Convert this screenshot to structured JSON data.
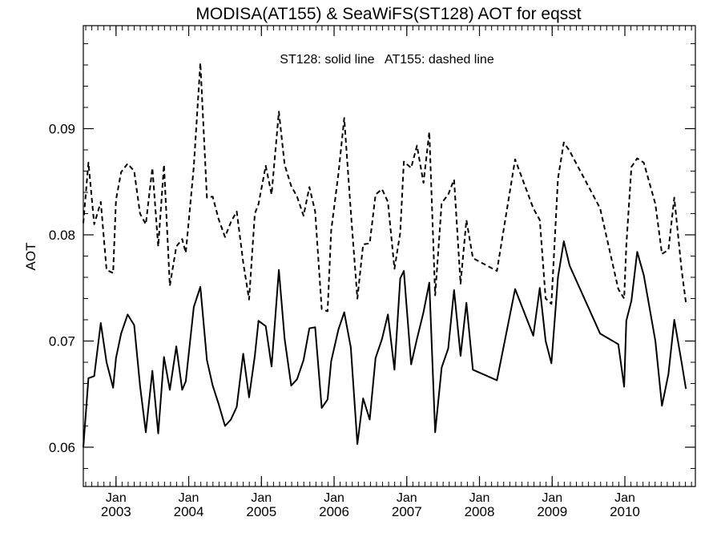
{
  "chart_data": {
    "type": "line",
    "title": "MODISA(AT155) & SeaWiFS(ST128)  AOT for eqsst",
    "annotation": "ST128: solid line   AT155: dashed line",
    "ylabel": "AOT",
    "xlabel": "",
    "x_unit": "year",
    "xlim": [
      2002.55,
      2010.97
    ],
    "ylim": [
      0.0563,
      0.0997
    ],
    "y_ticks": [
      0.06,
      0.07,
      0.08,
      0.09
    ],
    "y_tick_labels": [
      "0.06",
      "0.07",
      "0.08",
      "0.09"
    ],
    "x_ticks": [
      {
        "x": 2003.0,
        "month": "Jan",
        "year": "2003"
      },
      {
        "x": 2004.0,
        "month": "Jan",
        "year": "2004"
      },
      {
        "x": 2005.0,
        "month": "Jan",
        "year": "2005"
      },
      {
        "x": 2006.0,
        "month": "Jan",
        "year": "2006"
      },
      {
        "x": 2007.0,
        "month": "Jan",
        "year": "2007"
      },
      {
        "x": 2008.0,
        "month": "Jan",
        "year": "2008"
      },
      {
        "x": 2009.0,
        "month": "Jan",
        "year": "2009"
      },
      {
        "x": 2010.0,
        "month": "Jan",
        "year": "2010"
      }
    ],
    "series": [
      {
        "name": "ST128",
        "style": "solid",
        "color": "#000000",
        "points": [
          [
            2002.55,
            0.06
          ],
          [
            2002.62,
            0.0665
          ],
          [
            2002.7,
            0.0667
          ],
          [
            2002.79,
            0.0717
          ],
          [
            2002.87,
            0.068
          ],
          [
            2002.96,
            0.0656
          ],
          [
            2003.0,
            0.0684
          ],
          [
            2003.07,
            0.0707
          ],
          [
            2003.16,
            0.0725
          ],
          [
            2003.25,
            0.0715
          ],
          [
            2003.33,
            0.0658
          ],
          [
            2003.41,
            0.0614
          ],
          [
            2003.5,
            0.0672
          ],
          [
            2003.58,
            0.0613
          ],
          [
            2003.66,
            0.0685
          ],
          [
            2003.74,
            0.0654
          ],
          [
            2003.83,
            0.0695
          ],
          [
            2003.91,
            0.0654
          ],
          [
            2003.96,
            0.0662
          ],
          [
            2004.07,
            0.0732
          ],
          [
            2004.16,
            0.0751
          ],
          [
            2004.25,
            0.0682
          ],
          [
            2004.33,
            0.0658
          ],
          [
            2004.41,
            0.0641
          ],
          [
            2004.5,
            0.062
          ],
          [
            2004.58,
            0.0626
          ],
          [
            2004.66,
            0.0638
          ],
          [
            2004.75,
            0.0688
          ],
          [
            2004.83,
            0.0647
          ],
          [
            2004.91,
            0.0686
          ],
          [
            2004.96,
            0.0719
          ],
          [
            2005.06,
            0.0714
          ],
          [
            2005.14,
            0.0676
          ],
          [
            2005.24,
            0.0767
          ],
          [
            2005.32,
            0.0702
          ],
          [
            2005.41,
            0.0658
          ],
          [
            2005.49,
            0.0664
          ],
          [
            2005.58,
            0.0682
          ],
          [
            2005.66,
            0.0712
          ],
          [
            2005.74,
            0.0713
          ],
          [
            2005.83,
            0.0637
          ],
          [
            2005.91,
            0.0645
          ],
          [
            2005.96,
            0.0681
          ],
          [
            2006.06,
            0.0711
          ],
          [
            2006.14,
            0.0727
          ],
          [
            2006.23,
            0.0694
          ],
          [
            2006.32,
            0.0603
          ],
          [
            2006.4,
            0.0646
          ],
          [
            2006.49,
            0.0626
          ],
          [
            2006.57,
            0.0684
          ],
          [
            2006.66,
            0.0702
          ],
          [
            2006.74,
            0.0725
          ],
          [
            2006.83,
            0.0673
          ],
          [
            2006.91,
            0.0759
          ],
          [
            2006.96,
            0.0766
          ],
          [
            2007.06,
            0.0678
          ],
          [
            2007.14,
            0.0702
          ],
          [
            2007.23,
            0.0727
          ],
          [
            2007.31,
            0.0755
          ],
          [
            2007.39,
            0.0614
          ],
          [
            2007.48,
            0.0675
          ],
          [
            2007.57,
            0.0693
          ],
          [
            2007.65,
            0.0748
          ],
          [
            2007.74,
            0.0686
          ],
          [
            2007.82,
            0.0736
          ],
          [
            2007.91,
            0.0673
          ],
          [
            2008.24,
            0.0663
          ],
          [
            2008.49,
            0.0749
          ],
          [
            2008.74,
            0.0705
          ],
          [
            2008.83,
            0.075
          ],
          [
            2008.91,
            0.07
          ],
          [
            2008.99,
            0.0679
          ],
          [
            2009.08,
            0.076
          ],
          [
            2009.16,
            0.0794
          ],
          [
            2009.24,
            0.0771
          ],
          [
            2009.66,
            0.0707
          ],
          [
            2009.91,
            0.0697
          ],
          [
            2009.99,
            0.0657
          ],
          [
            2010.02,
            0.0719
          ],
          [
            2010.09,
            0.0738
          ],
          [
            2010.17,
            0.0784
          ],
          [
            2010.26,
            0.0762
          ],
          [
            2010.42,
            0.07
          ],
          [
            2010.51,
            0.0639
          ],
          [
            2010.6,
            0.0669
          ],
          [
            2010.68,
            0.072
          ],
          [
            2010.78,
            0.068
          ],
          [
            2010.84,
            0.0655
          ]
        ]
      },
      {
        "name": "AT155",
        "style": "dashed",
        "color": "#000000",
        "points": [
          [
            2002.55,
            0.0811
          ],
          [
            2002.62,
            0.0868
          ],
          [
            2002.7,
            0.081
          ],
          [
            2002.79,
            0.0831
          ],
          [
            2002.87,
            0.0767
          ],
          [
            2002.96,
            0.0764
          ],
          [
            2003.0,
            0.0833
          ],
          [
            2003.07,
            0.0859
          ],
          [
            2003.16,
            0.0867
          ],
          [
            2003.25,
            0.086
          ],
          [
            2003.33,
            0.082
          ],
          [
            2003.41,
            0.081
          ],
          [
            2003.5,
            0.0863
          ],
          [
            2003.58,
            0.0789
          ],
          [
            2003.66,
            0.0866
          ],
          [
            2003.74,
            0.0752
          ],
          [
            2003.83,
            0.0789
          ],
          [
            2003.91,
            0.0796
          ],
          [
            2003.96,
            0.0783
          ],
          [
            2004.07,
            0.0864
          ],
          [
            2004.16,
            0.0962
          ],
          [
            2004.25,
            0.0835
          ],
          [
            2004.33,
            0.0836
          ],
          [
            2004.41,
            0.0815
          ],
          [
            2004.5,
            0.0798
          ],
          [
            2004.58,
            0.0812
          ],
          [
            2004.66,
            0.0822
          ],
          [
            2004.75,
            0.0774
          ],
          [
            2004.83,
            0.0739
          ],
          [
            2004.91,
            0.082
          ],
          [
            2004.96,
            0.0829
          ],
          [
            2005.06,
            0.0865
          ],
          [
            2005.14,
            0.0838
          ],
          [
            2005.24,
            0.0916
          ],
          [
            2005.32,
            0.0866
          ],
          [
            2005.41,
            0.0846
          ],
          [
            2005.49,
            0.0836
          ],
          [
            2005.58,
            0.0818
          ],
          [
            2005.66,
            0.0845
          ],
          [
            2005.74,
            0.0822
          ],
          [
            2005.83,
            0.073
          ],
          [
            2005.91,
            0.0728
          ],
          [
            2005.96,
            0.0804
          ],
          [
            2006.06,
            0.0858
          ],
          [
            2006.14,
            0.091
          ],
          [
            2006.23,
            0.0822
          ],
          [
            2006.32,
            0.074
          ],
          [
            2006.4,
            0.0791
          ],
          [
            2006.49,
            0.0792
          ],
          [
            2006.57,
            0.0838
          ],
          [
            2006.66,
            0.0843
          ],
          [
            2006.74,
            0.0831
          ],
          [
            2006.83,
            0.0768
          ],
          [
            2006.91,
            0.0802
          ],
          [
            2006.96,
            0.0869
          ],
          [
            2007.06,
            0.0863
          ],
          [
            2007.14,
            0.0884
          ],
          [
            2007.23,
            0.0849
          ],
          [
            2007.31,
            0.0897
          ],
          [
            2007.39,
            0.0743
          ],
          [
            2007.48,
            0.083
          ],
          [
            2007.57,
            0.0838
          ],
          [
            2007.65,
            0.0852
          ],
          [
            2007.74,
            0.0754
          ],
          [
            2007.82,
            0.0814
          ],
          [
            2007.91,
            0.0778
          ],
          [
            2008.24,
            0.0766
          ],
          [
            2008.49,
            0.0871
          ],
          [
            2008.74,
            0.0825
          ],
          [
            2008.83,
            0.0814
          ],
          [
            2008.91,
            0.074
          ],
          [
            2008.99,
            0.0735
          ],
          [
            2009.08,
            0.0853
          ],
          [
            2009.16,
            0.0887
          ],
          [
            2009.24,
            0.0879
          ],
          [
            2009.66,
            0.0825
          ],
          [
            2009.91,
            0.0749
          ],
          [
            2009.99,
            0.074
          ],
          [
            2010.02,
            0.079
          ],
          [
            2010.09,
            0.0864
          ],
          [
            2010.17,
            0.0872
          ],
          [
            2010.26,
            0.0868
          ],
          [
            2010.42,
            0.0829
          ],
          [
            2010.51,
            0.0782
          ],
          [
            2010.6,
            0.0786
          ],
          [
            2010.68,
            0.0835
          ],
          [
            2010.78,
            0.0767
          ],
          [
            2010.84,
            0.0736
          ]
        ]
      }
    ]
  }
}
